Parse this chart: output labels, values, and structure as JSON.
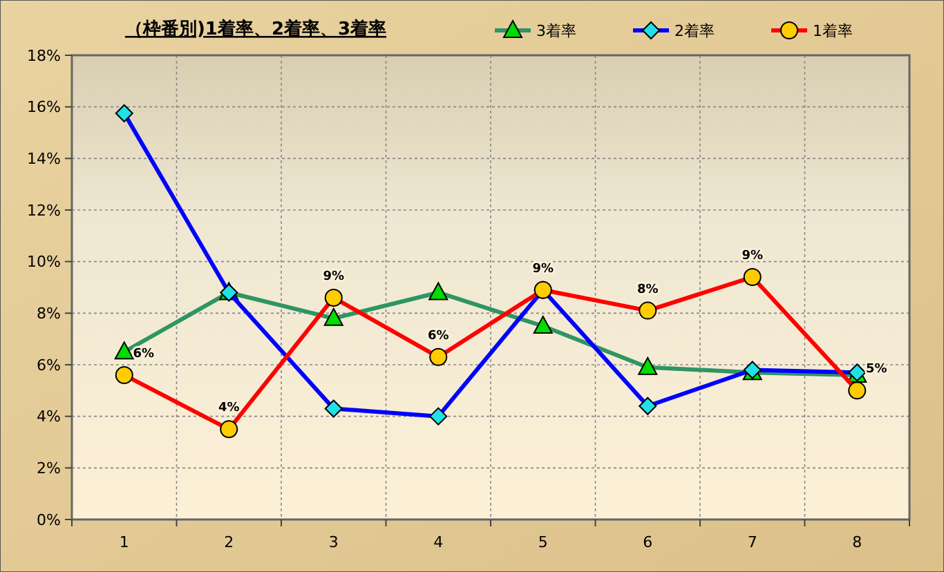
{
  "chart_data": {
    "type": "line",
    "title": "（枠番別)1着率、2着率、3着率",
    "categories": [
      "1",
      "2",
      "3",
      "4",
      "5",
      "6",
      "7",
      "8"
    ],
    "series": [
      {
        "name": "3着率",
        "color": "#2e9563",
        "marker": "triangle",
        "values": [
          6.5,
          8.8,
          7.8,
          8.8,
          7.5,
          5.9,
          5.7,
          5.6
        ]
      },
      {
        "name": "2着率",
        "color": "#0000ff",
        "marker": "diamond",
        "values": [
          15.75,
          8.8,
          4.3,
          4.0,
          8.9,
          4.4,
          5.8,
          5.7
        ]
      },
      {
        "name": "1着率",
        "color": "#ff0000",
        "marker": "circle",
        "values": [
          5.6,
          3.5,
          8.6,
          6.3,
          8.9,
          8.1,
          9.4,
          5.0
        ],
        "value_labels": [
          "6%",
          "4%",
          "9%",
          "6%",
          "9%",
          "8%",
          "9%",
          "5%"
        ]
      }
    ],
    "ylim": [
      0,
      18
    ],
    "yticks": [
      {
        "value": 0,
        "label": "0%"
      },
      {
        "value": 2,
        "label": "2%"
      },
      {
        "value": 4,
        "label": "4%"
      },
      {
        "value": 6,
        "label": "6%"
      },
      {
        "value": 8,
        "label": "8%"
      },
      {
        "value": 10,
        "label": "10%"
      },
      {
        "value": 12,
        "label": "12%"
      },
      {
        "value": 14,
        "label": "14%"
      },
      {
        "value": 16,
        "label": "16%"
      },
      {
        "value": 18,
        "label": "18%"
      }
    ],
    "grid": true,
    "legend": "top right"
  }
}
